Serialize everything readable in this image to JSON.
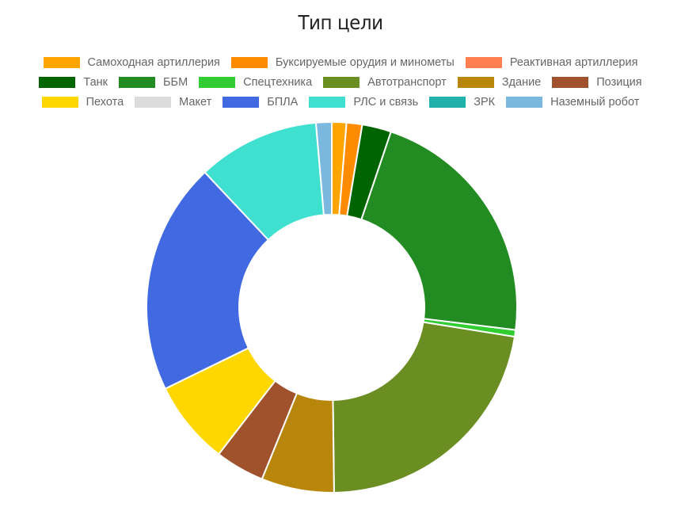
{
  "chart_data": {
    "type": "pie",
    "variant": "doughnut",
    "title": "Тип цели",
    "legend_position": "top",
    "legend_rows": [
      3,
      6,
      6
    ],
    "categories": [
      "Самоходная артиллерия",
      "Буксируемые орудия и минометы",
      "Реактивная артиллерия",
      "Танк",
      "ББМ",
      "Спецтехника",
      "Автотранспорт",
      "Здание",
      "Позиция",
      "Пехота",
      "Макет",
      "БПЛА",
      "РЛС и связь",
      "ЗРК",
      "Наземный робот"
    ],
    "values": [
      1.3,
      1.4,
      0,
      2.6,
      22.3,
      0.6,
      22.8,
      6.5,
      4.4,
      7.5,
      0,
      20.7,
      10.9,
      0,
      1.4
    ],
    "colors": [
      "#FFA500",
      "#FF8C00",
      "#FF7F50",
      "#006400",
      "#228B22",
      "#32CD32",
      "#6B8E23",
      "#B8860B",
      "#A0522D",
      "#FFD700",
      "#DCDCDC",
      "#4169E1",
      "#40E0D0",
      "#20B2AA",
      "#7BB8E0"
    ]
  }
}
